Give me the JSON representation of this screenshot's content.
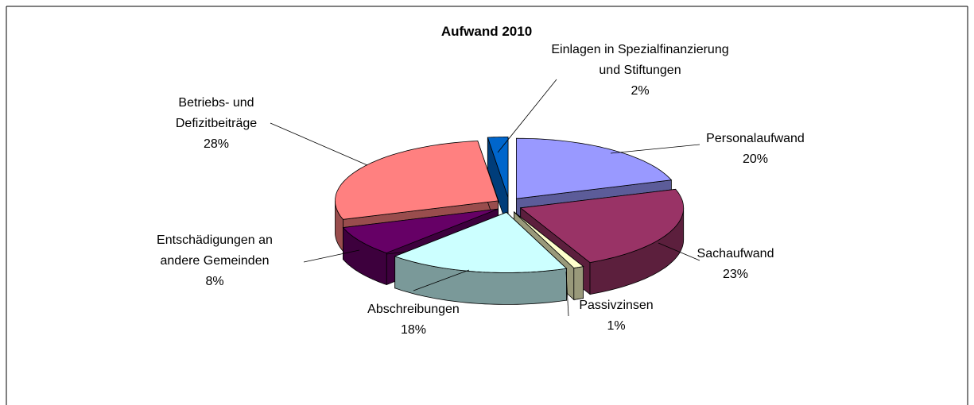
{
  "chart_data": {
    "type": "pie",
    "title": "Aufwand 2010",
    "categories": [
      "Personalaufwand",
      "Sachaufwand",
      "Passivzinsen",
      "Abschreibungen",
      "Entschädigungen an andere Gemeinden",
      "Betriebs- und Defizitbeiträge",
      "Einlagen in Spezialfinanzierung und Stiftungen"
    ],
    "values": [
      20,
      23,
      1,
      18,
      8,
      28,
      2
    ],
    "value_labels": [
      "20%",
      "23%",
      "1%",
      "18%",
      "8%",
      "28%",
      "2%"
    ],
    "colors": [
      "#9999FF",
      "#993366",
      "#FFFFCC",
      "#CCFFFF",
      "#660066",
      "#FF8080",
      "#0066CC"
    ]
  }
}
